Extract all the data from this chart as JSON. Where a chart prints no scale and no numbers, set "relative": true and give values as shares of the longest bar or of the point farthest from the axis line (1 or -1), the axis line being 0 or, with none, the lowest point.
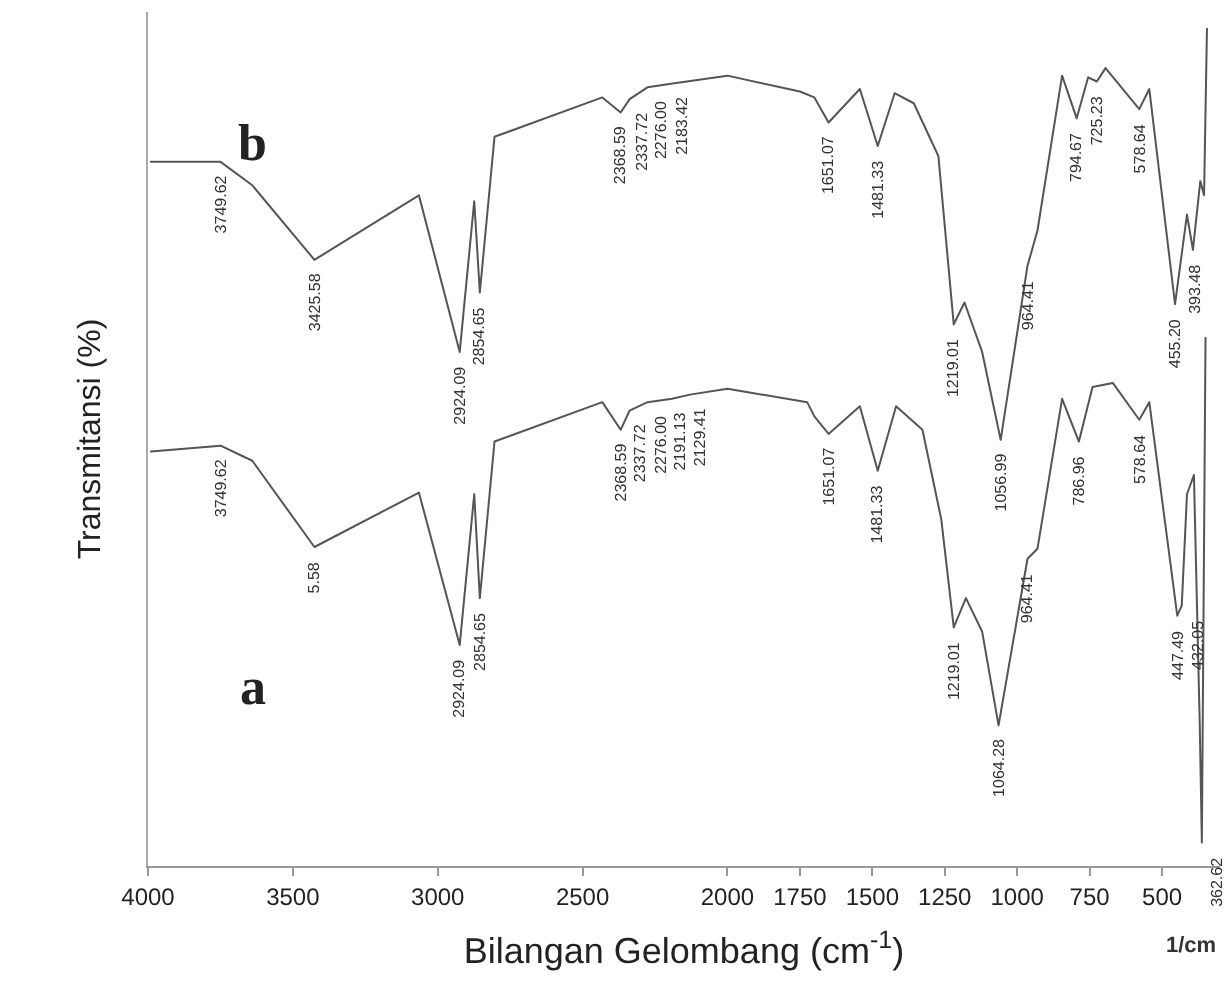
{
  "chart_data": {
    "type": "line",
    "relative": true,
    "xlabel": "Bilangan Gelombang (cm$^{-1}$)",
    "ylabel": "Transmitansi (%)",
    "xlim": [
      4000,
      300
    ],
    "xticks": [
      4000,
      3500,
      3000,
      2500,
      2000,
      1750,
      1500,
      1250,
      1000,
      750,
      500
    ],
    "legend": false,
    "marker": "none",
    "line_style": "solid",
    "series": [
      {
        "name": "b",
        "color": "#555555",
        "x": [
          3990,
          3749.62,
          3640,
          3425.58,
          3065,
          2924.09,
          2874,
          2854.65,
          2804,
          2432,
          2368.59,
          2337.72,
          2276.0,
          2183.42,
          2000,
          1750,
          1700,
          1651.07,
          1543,
          1481.33,
          1423,
          1357,
          1272,
          1219.01,
          1182,
          1121,
          1056.99,
          964.41,
          930,
          845,
          794.67,
          755,
          725.23,
          695,
          578.64,
          544,
          455.2,
          414,
          393.48,
          368,
          355,
          345
        ],
        "values": [
          0.841,
          0.841,
          0.813,
          0.724,
          0.801,
          0.614,
          0.794,
          0.685,
          0.871,
          0.918,
          0.9,
          0.916,
          0.93,
          0.935,
          0.944,
          0.925,
          0.918,
          0.888,
          0.928,
          0.86,
          0.923,
          0.911,
          0.848,
          0.647,
          0.673,
          0.614,
          0.509,
          0.717,
          0.759,
          0.944,
          0.893,
          0.942,
          0.937,
          0.953,
          0.904,
          0.928,
          0.671,
          0.778,
          0.736,
          0.818,
          0.801,
          1.0
        ]
      },
      {
        "name": "a",
        "color": "#555555",
        "x": [
          3990,
          3749.62,
          3640,
          3425.58,
          3065,
          2924.09,
          2874,
          2854.65,
          2804,
          2432,
          2368.59,
          2337.72,
          2276.0,
          2191.13,
          2129.41,
          2000,
          1725,
          1700,
          1651.07,
          1543,
          1481.33,
          1418,
          1327,
          1262,
          1219.01,
          1177,
          1121,
          1064.28,
          964.41,
          930,
          845,
          786.96,
          740,
          670,
          578.64,
          544,
          447.49,
          432.05,
          414,
          390,
          370,
          362.62,
          350
        ],
        "values": [
          0.495,
          0.502,
          0.484,
          0.381,
          0.446,
          0.264,
          0.444,
          0.32,
          0.507,
          0.554,
          0.521,
          0.544,
          0.554,
          0.558,
          0.563,
          0.57,
          0.554,
          0.537,
          0.516,
          0.549,
          0.472,
          0.549,
          0.521,
          0.414,
          0.285,
          0.32,
          0.28,
          0.168,
          0.367,
          0.379,
          0.558,
          0.507,
          0.572,
          0.577,
          0.533,
          0.554,
          0.299,
          0.311,
          0.444,
          0.467,
          0.171,
          0.028,
          0.631
        ]
      }
    ],
    "annotations": [
      {
        "text": "3749.62",
        "x": 3749.62,
        "y": 0.841
      },
      {
        "text": "3425.58",
        "x": 3425.58,
        "y": 0.724
      },
      {
        "text": "2924.09",
        "x": 2924.09,
        "y": 0.614
      },
      {
        "text": "2854.65",
        "x": 2854.65,
        "y": 0.685
      },
      {
        "text": "2368.59",
        "x": 2368.59,
        "y": 0.9
      },
      {
        "text": "2337.72",
        "x": 2337.72,
        "y": 0.916
      },
      {
        "text": "2276.00",
        "x": 2276.0,
        "y": 0.93
      },
      {
        "text": "2183.42",
        "x": 2183.42,
        "y": 0.935
      },
      {
        "text": "1651.07",
        "x": 1651.07,
        "y": 0.888
      },
      {
        "text": "1481.33",
        "x": 1481.33,
        "y": 0.86
      },
      {
        "text": "1219.01",
        "x": 1219.01,
        "y": 0.647
      },
      {
        "text": "1056.99",
        "x": 1056.99,
        "y": 0.509
      },
      {
        "text": "964.41",
        "x": 964.41,
        "y": 0.717
      },
      {
        "text": "794.67",
        "x": 794.67,
        "y": 0.893
      },
      {
        "text": "725.23",
        "x": 725.23,
        "y": 0.937
      },
      {
        "text": "578.64",
        "x": 578.64,
        "y": 0.904
      },
      {
        "text": "455.20",
        "x": 455.2,
        "y": 0.671
      },
      {
        "text": "393.48",
        "x": 393.48,
        "y": 0.736
      },
      {
        "text": "3749.62",
        "x": 3749.62,
        "y": 0.502
      },
      {
        "text": "5.58",
        "x": 3425.58,
        "y": 0.381
      },
      {
        "text": "2924.09",
        "x": 2924.09,
        "y": 0.264
      },
      {
        "text": "2854.65",
        "x": 2854.65,
        "y": 0.32
      },
      {
        "text": "2368.59",
        "x": 2368.59,
        "y": 0.521
      },
      {
        "text": "2337.72",
        "x": 2337.72,
        "y": 0.544
      },
      {
        "text": "2276.00",
        "x": 2276.0,
        "y": 0.554
      },
      {
        "text": "2191.13",
        "x": 2191.13,
        "y": 0.558
      },
      {
        "text": "2129.41",
        "x": 2129.41,
        "y": 0.563
      },
      {
        "text": "1651.07",
        "x": 1651.07,
        "y": 0.516
      },
      {
        "text": "1481.33",
        "x": 1481.33,
        "y": 0.472
      },
      {
        "text": "1219.01",
        "x": 1219.01,
        "y": 0.285
      },
      {
        "text": "1064.28",
        "x": 1064.28,
        "y": 0.168
      },
      {
        "text": "964.41",
        "x": 964.41,
        "y": 0.367
      },
      {
        "text": "786.96",
        "x": 786.96,
        "y": 0.507
      },
      {
        "text": "578.64",
        "x": 578.64,
        "y": 0.533
      },
      {
        "text": "447.49",
        "x": 447.49,
        "y": 0.299
      },
      {
        "text": "432.05",
        "x": 432.05,
        "y": 0.311
      },
      {
        "text": "362.62",
        "x": 362.62,
        "y": 0.028
      },
      "1/cm"
    ]
  }
}
